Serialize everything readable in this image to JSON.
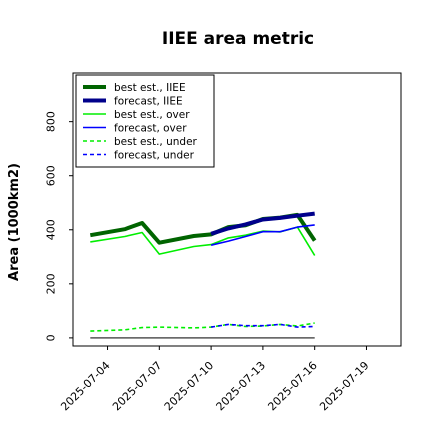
{
  "chart_data": {
    "type": "line",
    "title": "IIEE area metric",
    "xlabel": "",
    "ylabel": "Area (1000km2)",
    "ylim": [
      -30,
      980
    ],
    "xlim": [
      "2025-07-02",
      "2025-07-21"
    ],
    "grid": false,
    "legend_position": "top-left",
    "y_ticks": [
      "0",
      "200",
      "400",
      "600",
      "800"
    ],
    "y_tick_values": [
      0,
      200,
      400,
      600,
      800
    ],
    "x_ticks": [
      "2025-07-04",
      "2025-07-07",
      "2025-07-10",
      "2025-07-13",
      "2025-07-16",
      "2025-07-19"
    ],
    "highlighted_x_tick": "2025-07-10",
    "highlight_color": "#228b22",
    "series": [
      {
        "name": "best est., IIEE",
        "color": "#006400",
        "style": "solid",
        "weight": "thick",
        "x": [
          "2025-07-03",
          "2025-07-05",
          "2025-07-06",
          "2025-07-07",
          "2025-07-09",
          "2025-07-10",
          "2025-07-11",
          "2025-07-12",
          "2025-07-13",
          "2025-07-14",
          "2025-07-15",
          "2025-07-16"
        ],
        "y": [
          380,
          402,
          425,
          352,
          377,
          383,
          410,
          417,
          440,
          445,
          455,
          360
        ]
      },
      {
        "name": "forecast, IIEE",
        "color": "#00008b",
        "style": "solid",
        "weight": "thick",
        "x": [
          "2025-07-10",
          "2025-07-11",
          "2025-07-12",
          "2025-07-13",
          "2025-07-14",
          "2025-07-15",
          "2025-07-16"
        ],
        "y": [
          385,
          405,
          420,
          438,
          444,
          452,
          460
        ]
      },
      {
        "name": "best est., over",
        "color": "#00ee00",
        "style": "solid",
        "weight": "thin",
        "x": [
          "2025-07-03",
          "2025-07-05",
          "2025-07-06",
          "2025-07-07",
          "2025-07-09",
          "2025-07-10",
          "2025-07-11",
          "2025-07-12",
          "2025-07-13",
          "2025-07-14",
          "2025-07-15",
          "2025-07-16"
        ],
        "y": [
          355,
          375,
          390,
          310,
          338,
          345,
          370,
          380,
          395,
          392,
          410,
          305
        ]
      },
      {
        "name": "forecast, over",
        "color": "#0000ff",
        "style": "solid",
        "weight": "thin",
        "x": [
          "2025-07-10",
          "2025-07-11",
          "2025-07-12",
          "2025-07-13",
          "2025-07-14",
          "2025-07-15",
          "2025-07-16"
        ],
        "y": [
          343,
          358,
          375,
          393,
          393,
          410,
          418
        ]
      },
      {
        "name": "best est., under",
        "color": "#00ee00",
        "style": "dashed",
        "weight": "thin",
        "x": [
          "2025-07-03",
          "2025-07-05",
          "2025-07-06",
          "2025-07-07",
          "2025-07-09",
          "2025-07-10",
          "2025-07-11",
          "2025-07-12",
          "2025-07-13",
          "2025-07-14",
          "2025-07-15",
          "2025-07-16"
        ],
        "y": [
          25,
          30,
          38,
          40,
          37,
          40,
          50,
          42,
          44,
          50,
          44,
          55
        ]
      },
      {
        "name": "forecast, under",
        "color": "#0000ff",
        "style": "dashed",
        "weight": "thin",
        "x": [
          "2025-07-10",
          "2025-07-11",
          "2025-07-12",
          "2025-07-13",
          "2025-07-14",
          "2025-07-15",
          "2025-07-16"
        ],
        "y": [
          40,
          50,
          45,
          45,
          50,
          40,
          42
        ]
      },
      {
        "name": "",
        "color": "#555555",
        "style": "solid",
        "weight": "hair",
        "x": [
          "2025-07-03",
          "2025-07-16"
        ],
        "y": [
          0,
          0
        ]
      }
    ]
  }
}
